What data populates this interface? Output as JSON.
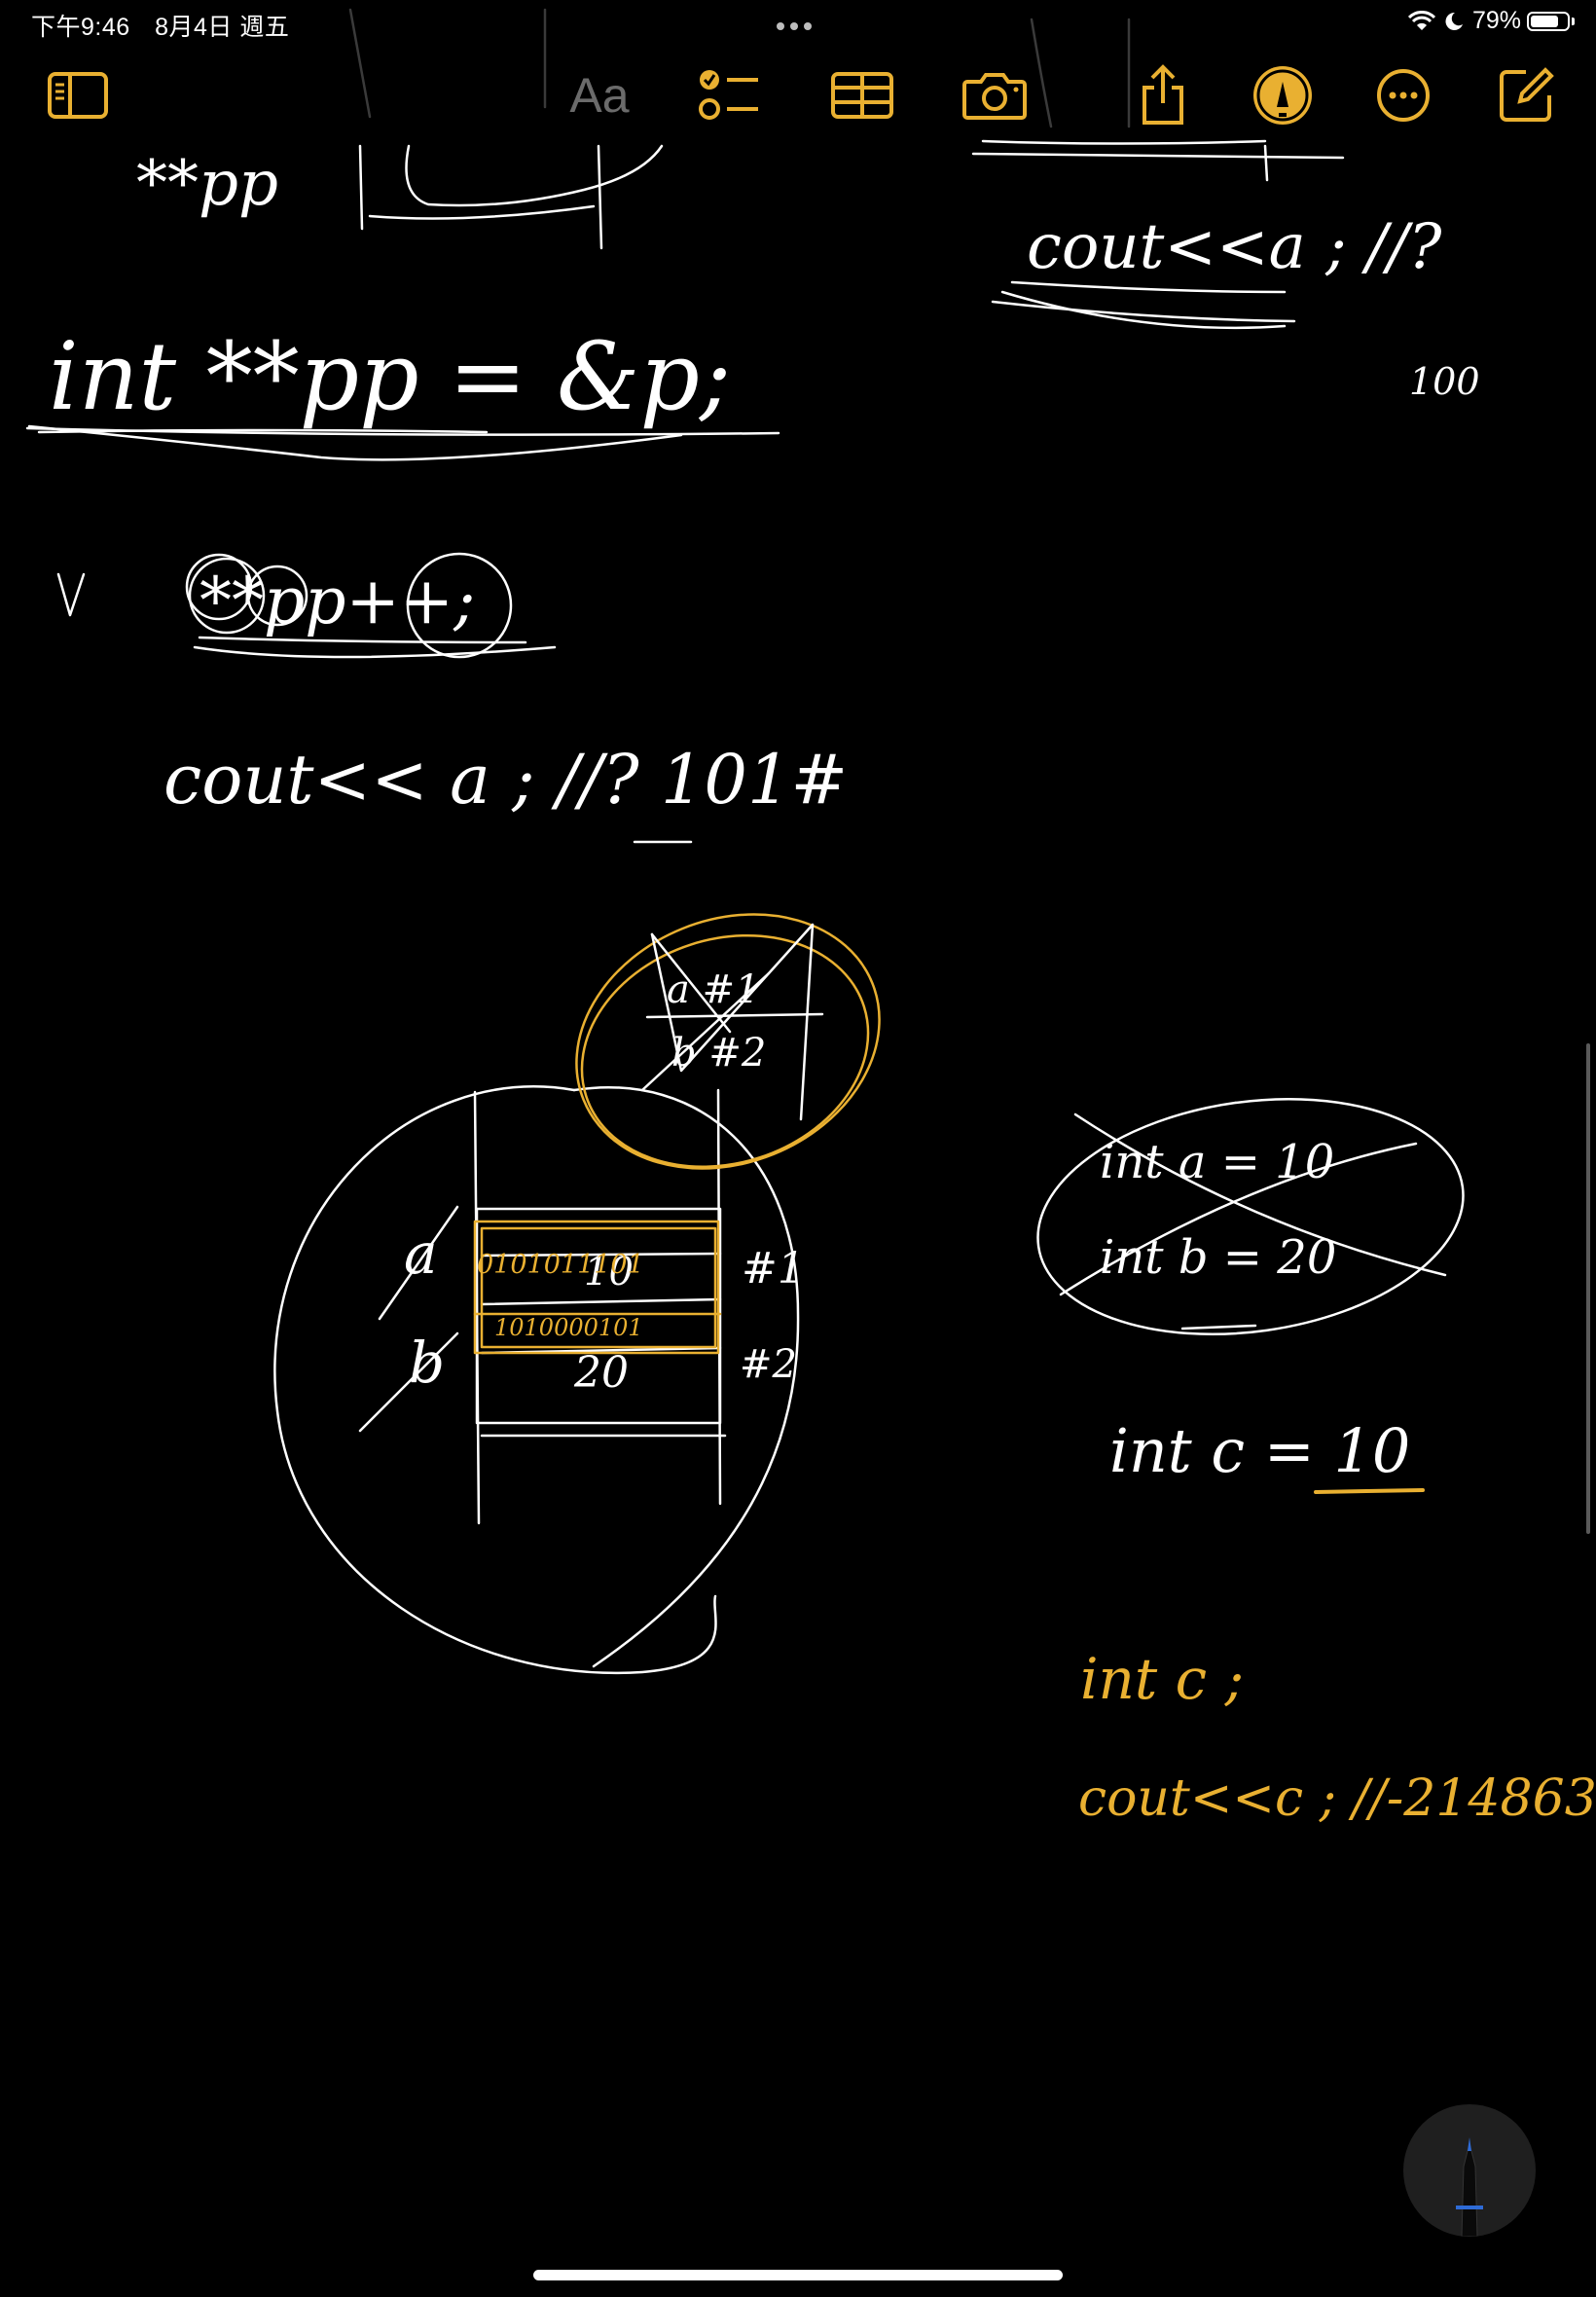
{
  "status_bar": {
    "time": "下午9:46",
    "date": "8月4日 週五",
    "battery_percent": "79%",
    "battery_level": 0.79,
    "icons": [
      "wifi-icon",
      "moon-icon",
      "battery-icon"
    ]
  },
  "toolbar": {
    "text_style_label": "Aa",
    "buttons": [
      "sidebar-toggle",
      "text-format",
      "checklist",
      "table",
      "camera",
      "share",
      "markup",
      "more",
      "compose"
    ]
  },
  "accent_color": "#e9b031",
  "note_handwriting": {
    "line1": "**pp",
    "line2": "int **pp = &p;",
    "line3": "**pp++;",
    "line4": "cout<< a ; //? 101#",
    "cout_top_right": "cout<<a ; //?",
    "top_right_value": "100",
    "box_left_labels": [
      "a",
      "b"
    ],
    "box_values": [
      "10",
      "20"
    ],
    "box_addresses": [
      "#1",
      "#2"
    ],
    "binary_values": [
      "0101011101",
      "1010000101"
    ],
    "ellipse_top": [
      "a #1",
      "b #2"
    ],
    "ellipse_right": [
      "int a = 10",
      "int b = 20"
    ],
    "int_c_line": "int c = 10",
    "orange_line1": "int c ;",
    "orange_line2": "cout<<c ; //-214863"
  }
}
